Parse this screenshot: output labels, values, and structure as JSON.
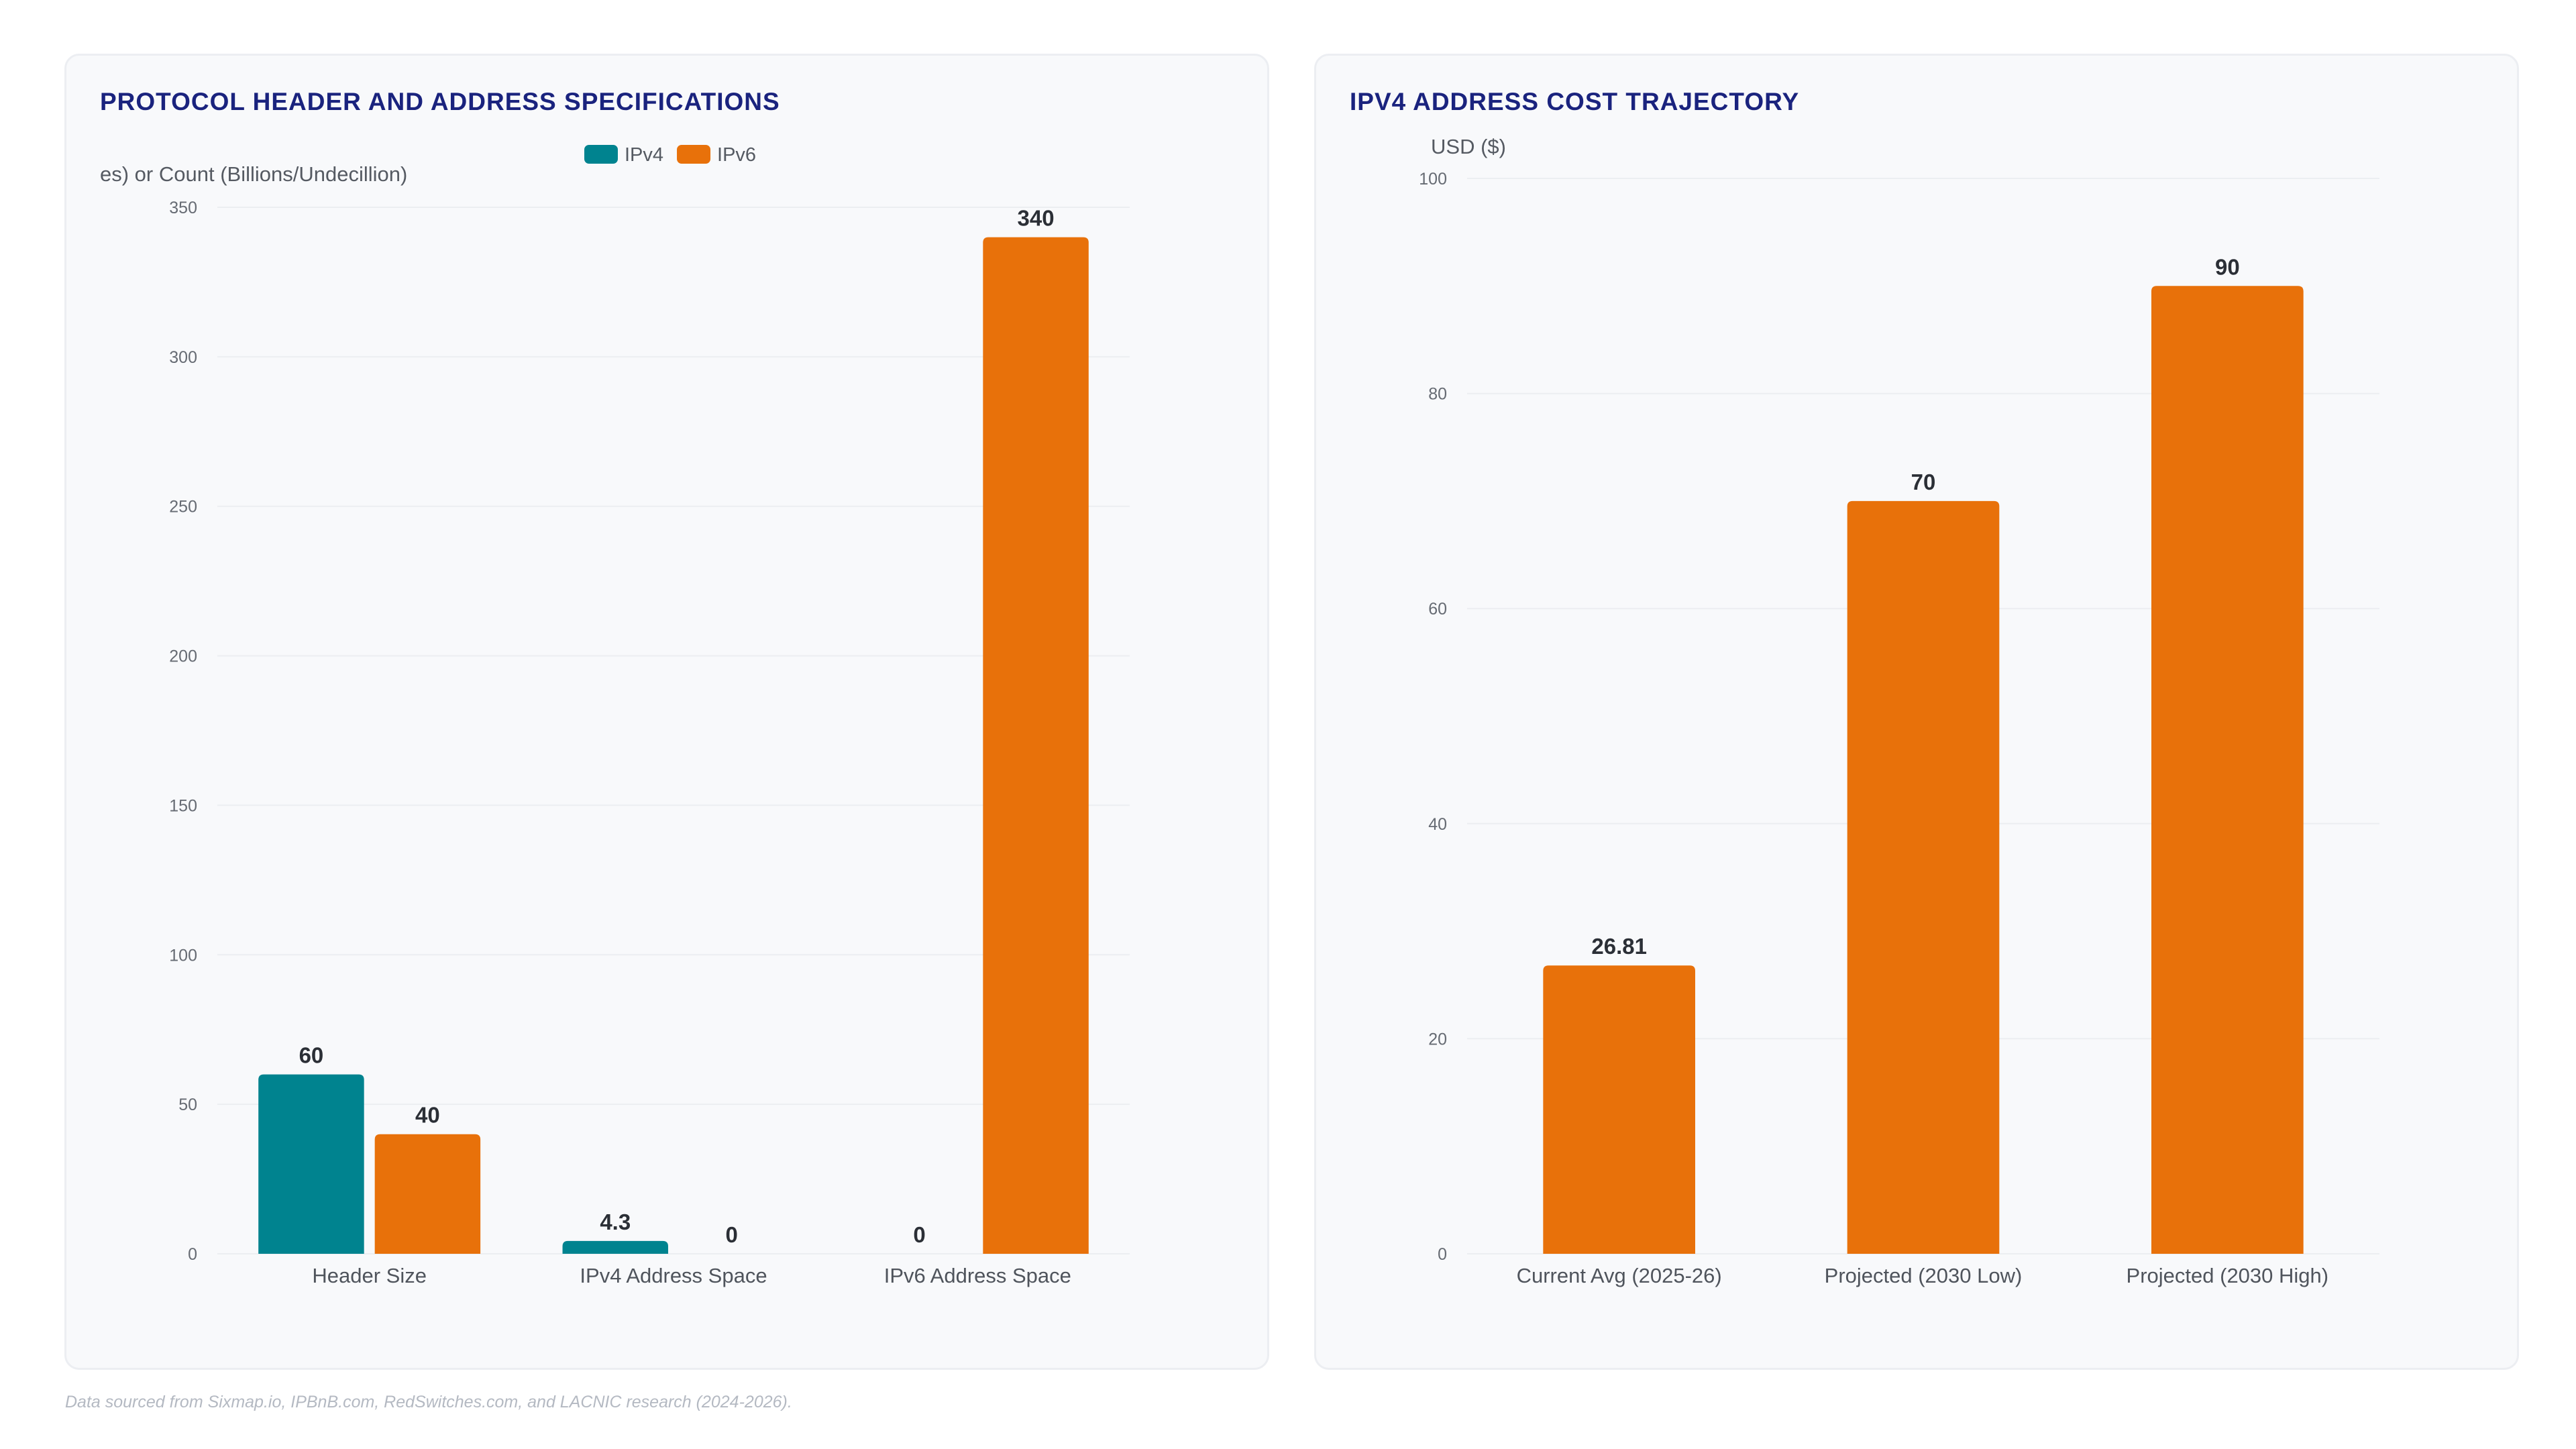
{
  "colors": {
    "ipv4": "#00838f",
    "ipv6": "#e8710a",
    "title": "#1a237e"
  },
  "footer": "Data sourced from Sixmap.io, IPBnB.com, RedSwitches.com, and LACNIC research (2024-2026).",
  "chart_data": [
    {
      "type": "bar",
      "title": "PROTOCOL HEADER AND ADDRESS SPECIFICATIONS",
      "ylabel": "es) or Count (Billions/Undecillion)",
      "xlabel": "",
      "categories": [
        "Header Size",
        "IPv4 Address Space",
        "IPv6 Address Space"
      ],
      "series": [
        {
          "name": "IPv4",
          "color": "#00838f",
          "values": [
            60,
            4.3,
            0
          ]
        },
        {
          "name": "IPv6",
          "color": "#e8710a",
          "values": [
            40,
            0,
            340
          ]
        }
      ],
      "ylim": [
        0,
        350
      ],
      "yticks": [
        0,
        50,
        100,
        150,
        200,
        250,
        300,
        350
      ],
      "grid": true,
      "legend": "top-center"
    },
    {
      "type": "bar",
      "title": "IPV4 ADDRESS COST TRAJECTORY",
      "ylabel": "USD ($)",
      "xlabel": "",
      "categories": [
        "Current Avg (2025-26)",
        "Projected (2030 Low)",
        "Projected (2030 High)"
      ],
      "series": [
        {
          "color": "#e8710a",
          "values": [
            26.81,
            70,
            90
          ]
        }
      ],
      "ylim": [
        0,
        100
      ],
      "yticks": [
        0,
        20,
        40,
        60,
        80,
        100
      ],
      "grid": true
    }
  ]
}
